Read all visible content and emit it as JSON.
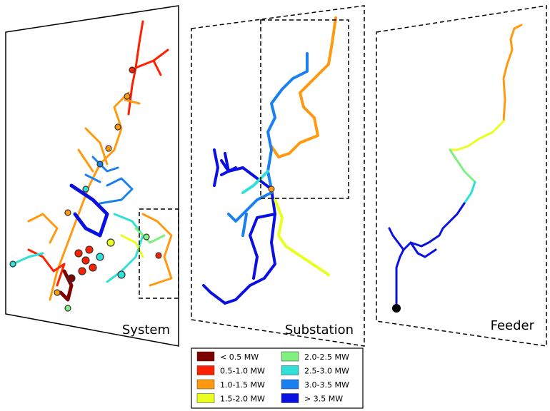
{
  "panels": [
    {
      "label": "System"
    },
    {
      "label": "Substation"
    },
    {
      "label": "Feeder"
    }
  ],
  "legend": [
    {
      "label": "< 0.5 MW",
      "color": "#7f0000"
    },
    {
      "label": "0.5-1.0 MW",
      "color": "#ff2000"
    },
    {
      "label": "1.0-1.5 MW",
      "color": "#ff9a10"
    },
    {
      "label": "1.5-2.0 MW",
      "color": "#e8ff20"
    },
    {
      "label": "2.0-2.5 MW",
      "color": "#80f080"
    },
    {
      "label": "2.5-3.0 MW",
      "color": "#30e0d8"
    },
    {
      "label": "3.0-3.5 MW",
      "color": "#1a80f0"
    },
    {
      "label": "> 3.5 MW",
      "color": "#0a10e0"
    }
  ]
}
